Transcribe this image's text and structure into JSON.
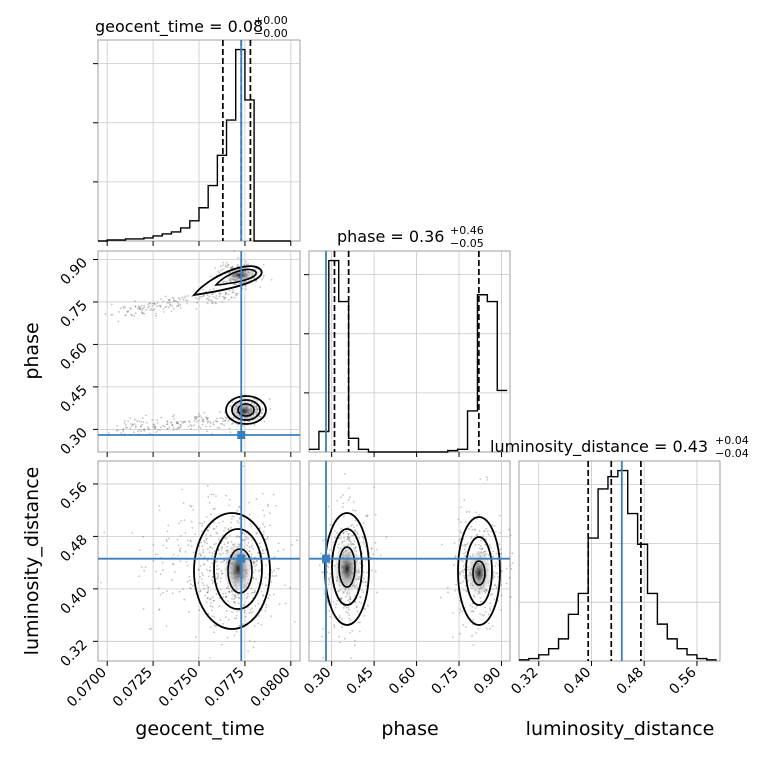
{
  "chart_data": {
    "type": "corner",
    "parameters": [
      "geocent_time",
      "phase",
      "luminosity_distance"
    ],
    "truth": {
      "geocent_time": 0.0773,
      "phase": 0.28,
      "luminosity_distance": 0.446
    },
    "titles": [
      {
        "label": "geocent_time = 0.08",
        "plus": "+0.00",
        "minus": "−0.00"
      },
      {
        "label": "phase = 0.36",
        "plus": "+0.46",
        "minus": "−0.05"
      },
      {
        "label": "luminosity_distance = 0.43",
        "plus": "+0.04",
        "minus": "−0.04"
      }
    ],
    "quantiles": {
      "geocent_time": [
        0.0763,
        0.0773,
        0.0778
      ],
      "phase": [
        0.31,
        0.36,
        0.82
      ],
      "luminosity_distance": [
        0.395,
        0.43,
        0.475
      ]
    },
    "axes": {
      "geocent_time": {
        "range": [
          0.0695,
          0.0805
        ],
        "ticks": [
          0.07,
          0.0725,
          0.075,
          0.0775,
          0.08
        ],
        "tick_labels": [
          "0.0700",
          "0.0725",
          "0.0750",
          "0.0775",
          "0.0800"
        ],
        "xlabel": "geocent_time"
      },
      "phase": {
        "range": [
          0.22,
          0.93
        ],
        "ticks": [
          0.3,
          0.45,
          0.6,
          0.75,
          0.9
        ],
        "tick_labels": [
          "0.30",
          "0.45",
          "0.60",
          "0.75",
          "0.90"
        ],
        "xlabel": "phase",
        "ylabel": "phase"
      },
      "luminosity_distance": {
        "range": [
          0.29,
          0.595
        ],
        "ticks": [
          0.32,
          0.4,
          0.48,
          0.56
        ],
        "tick_labels": [
          "0.32",
          "0.40",
          "0.48",
          "0.56"
        ],
        "xlabel": "luminosity_distance",
        "ylabel": "luminosity_distance"
      }
    },
    "histograms": {
      "geocent_time": {
        "bins": [
          0.0695,
          0.07,
          0.0705,
          0.071,
          0.0715,
          0.072,
          0.0725,
          0.073,
          0.0735,
          0.074,
          0.0745,
          0.075,
          0.0755,
          0.076,
          0.0765,
          0.077,
          0.0775,
          0.078,
          0.0785,
          0.079,
          0.0795,
          0.08
        ],
        "counts": [
          0,
          1,
          1,
          2,
          2,
          3,
          5,
          7,
          9,
          13,
          20,
          33,
          55,
          85,
          120,
          190,
          140,
          0,
          0,
          0,
          0
        ]
      },
      "phase": {
        "bins": [
          0.22,
          0.255,
          0.29,
          0.325,
          0.36,
          0.395,
          0.43,
          0.465,
          0.5,
          0.535,
          0.57,
          0.605,
          0.64,
          0.675,
          0.71,
          0.745,
          0.78,
          0.815,
          0.85,
          0.885,
          0.92
        ],
        "counts": [
          2,
          15,
          140,
          110,
          10,
          2,
          0,
          0,
          0,
          0,
          0,
          0,
          0,
          0,
          1,
          2,
          30,
          115,
          110,
          45
        ]
      },
      "luminosity_distance": {
        "bins": [
          0.29,
          0.305,
          0.32,
          0.335,
          0.35,
          0.365,
          0.38,
          0.395,
          0.41,
          0.425,
          0.44,
          0.455,
          0.47,
          0.485,
          0.5,
          0.515,
          0.53,
          0.545,
          0.56,
          0.575,
          0.59
        ],
        "counts": [
          1,
          2,
          5,
          10,
          18,
          38,
          55,
          100,
          140,
          150,
          155,
          120,
          95,
          55,
          30,
          18,
          10,
          5,
          2,
          1
        ]
      }
    },
    "grid": true
  }
}
